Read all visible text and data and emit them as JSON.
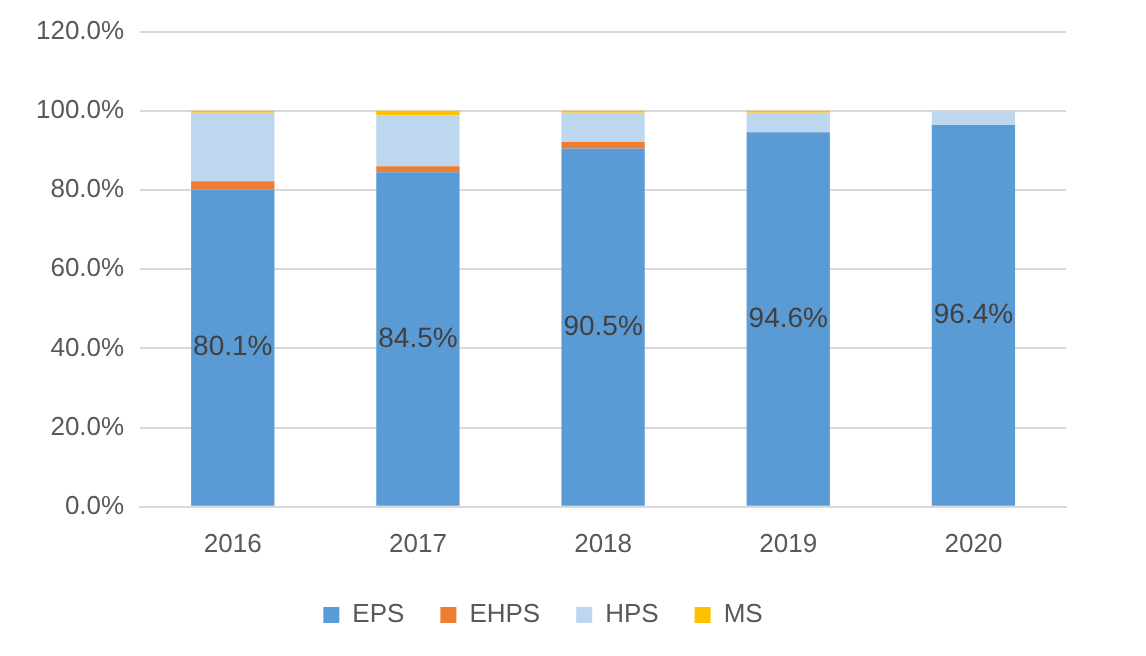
{
  "chart_data": {
    "type": "bar",
    "stacked": true,
    "categories": [
      "2016",
      "2017",
      "2018",
      "2019",
      "2020"
    ],
    "series": [
      {
        "name": "EPS",
        "color": "#5b9bd5",
        "values": [
          80.1,
          84.5,
          90.5,
          94.6,
          96.4
        ]
      },
      {
        "name": "EHPS",
        "color": "#ed7d31",
        "values": [
          2.1,
          1.5,
          1.6,
          0,
          0
        ]
      },
      {
        "name": "HPS",
        "color": "#bdd7ee",
        "values": [
          17.3,
          12.9,
          7.4,
          4.9,
          3.6
        ]
      },
      {
        "name": "MS",
        "color": "#ffc000",
        "values": [
          0.5,
          1.1,
          0.5,
          0.5,
          0
        ]
      }
    ],
    "value_labels": [
      "80.1%",
      "84.5%",
      "90.5%",
      "94.6%",
      "96.4%"
    ],
    "ylim": [
      0,
      120
    ],
    "yticks": [
      {
        "value": 0,
        "label": "0.0%"
      },
      {
        "value": 20,
        "label": "20.0%"
      },
      {
        "value": 40,
        "label": "40.0%"
      },
      {
        "value": 60,
        "label": "60.0%"
      },
      {
        "value": 80,
        "label": "80.0%"
      },
      {
        "value": 100,
        "label": "100.0%"
      },
      {
        "value": 120,
        "label": "120.0%"
      }
    ],
    "grid": "y",
    "legend": "bottom"
  }
}
